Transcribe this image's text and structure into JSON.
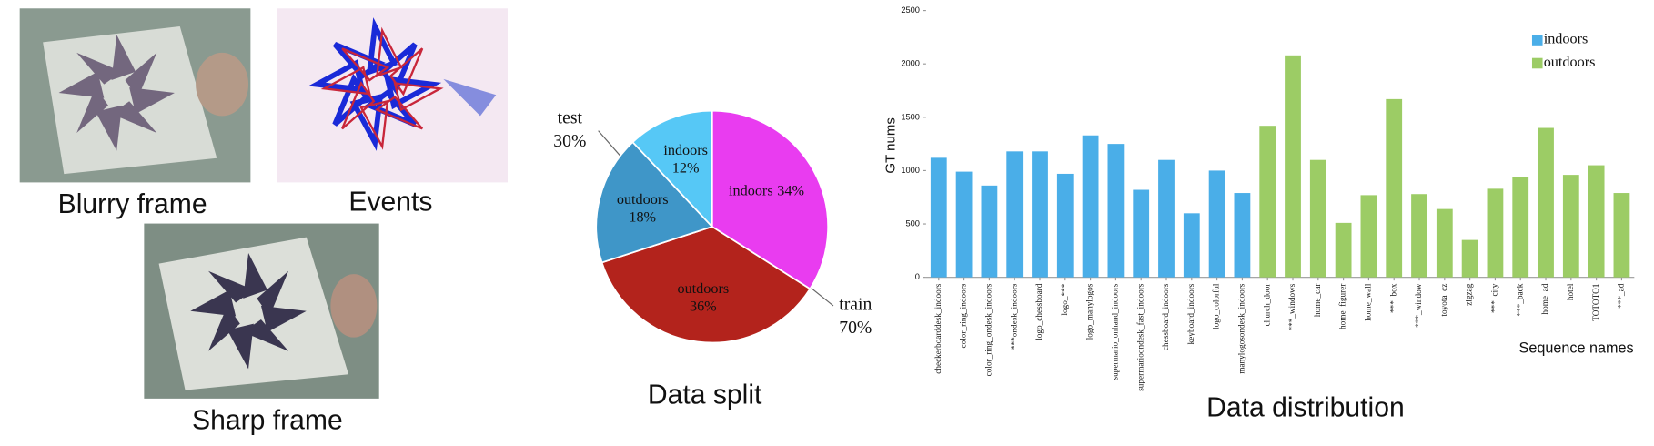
{
  "images": [
    {
      "caption": "Blurry frame"
    },
    {
      "caption": "Events"
    },
    {
      "caption": "Sharp frame"
    }
  ],
  "chart_data": [
    {
      "type": "pie",
      "title": "Data split",
      "categories": [
        "indoors",
        "outdoors",
        "outdoors",
        "indoors"
      ],
      "values": [
        34,
        36,
        18,
        12
      ],
      "value_labels": [
        "34%",
        "36%",
        "18%",
        "12%"
      ],
      "colors": [
        "#e93cf0",
        "#b3231c",
        "#3f96c8",
        "#56c8f6"
      ],
      "groups": [
        {
          "name": "train",
          "value": 70,
          "value_label": "70%"
        },
        {
          "name": "test",
          "value": 30,
          "value_label": "30%"
        }
      ]
    },
    {
      "type": "bar",
      "title": "Data distribution",
      "y_label": "GT nums",
      "x_label": "Sequence names",
      "categories": [
        "checkerboarddesk_indoors",
        "color_ring_indoors",
        "color_ring_ondesk_indoors",
        "***ondesk_indoors",
        "logo_chessboard",
        "logo_***",
        "logo_manylogos",
        "supermario_onhand_indoors",
        "supermarioondesk_fast_indoors",
        "chessboard_indoors",
        "keyboard_indoors",
        "logo_colorful",
        "manylogosondesk_indoors",
        "church_door",
        "***_windows",
        "home_car",
        "home_figurer",
        "home_wall",
        "***_box",
        "***_window",
        "toyota_cz",
        "zigzag",
        "***_city",
        "***_back",
        "home_ad",
        "hotel",
        "TOTOTO1",
        "***_ad"
      ],
      "series": [
        {
          "name": "indoors",
          "color": "#4aaee8",
          "values": [
            1120,
            990,
            860,
            1180,
            1180,
            970,
            1330,
            1250,
            820,
            1100,
            600,
            1000,
            790,
            null,
            null,
            null,
            null,
            null,
            null,
            null,
            null,
            null,
            null,
            null,
            null,
            null,
            null,
            null
          ]
        },
        {
          "name": "outdoors",
          "color": "#9ccc65",
          "values": [
            null,
            null,
            null,
            null,
            null,
            null,
            null,
            null,
            null,
            null,
            null,
            null,
            null,
            1420,
            2080,
            1100,
            510,
            770,
            1670,
            780,
            640,
            350,
            830,
            940,
            1400,
            960,
            1050,
            790
          ]
        }
      ],
      "ylim": [
        0,
        2500
      ],
      "yticks": [
        0,
        500,
        1000,
        1500,
        2000,
        2500
      ],
      "legend": "upper right"
    }
  ]
}
